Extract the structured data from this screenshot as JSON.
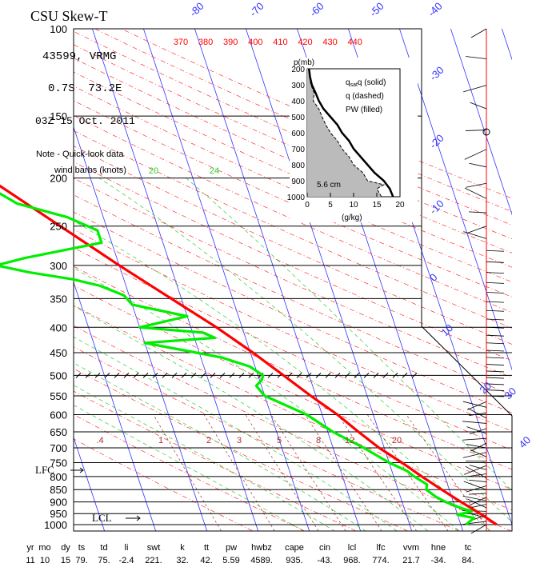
{
  "chart_data": {
    "type": "line",
    "title": "CSU Skew-T",
    "station": "43599, VRMG",
    "location": "0.7S  73.2E",
    "time": "03Z 15 Oct. 2011",
    "note_line1": "Note - Quick-look data",
    "note_line2": "wind barbs (knots)",
    "pressure_ticks": [
      100,
      150,
      200,
      250,
      300,
      350,
      400,
      450,
      500,
      550,
      600,
      650,
      700,
      750,
      800,
      850,
      900,
      950,
      1000
    ],
    "isotherm_labels": [
      -80,
      -70,
      -60,
      -50,
      -40,
      -30,
      -20,
      -10,
      0,
      10,
      20,
      30,
      40
    ],
    "theta_labels": [
      370,
      380,
      390,
      400,
      410,
      420,
      430,
      440
    ],
    "mixing_ratio_labels": [
      ".4",
      "1",
      "2",
      "3",
      "5",
      "8",
      "12",
      "20"
    ],
    "mixing_ratio_upper_labels": [
      "20",
      "24"
    ],
    "series": [
      {
        "name": "temperature",
        "color": "#ff0000",
        "points": [
          [
            1000,
            27
          ],
          [
            970,
            25.5
          ],
          [
            950,
            24.5
          ],
          [
            925,
            23
          ],
          [
            900,
            21.5
          ],
          [
            850,
            18.5
          ],
          [
            800,
            15.5
          ],
          [
            750,
            12.5
          ],
          [
            700,
            9
          ],
          [
            650,
            6
          ],
          [
            600,
            3
          ],
          [
            550,
            -1
          ],
          [
            500,
            -5
          ],
          [
            450,
            -9.5
          ],
          [
            400,
            -15
          ],
          [
            350,
            -22
          ],
          [
            300,
            -30
          ],
          [
            250,
            -39
          ],
          [
            200,
            -50
          ],
          [
            175,
            -57
          ],
          [
            150,
            -63.5
          ],
          [
            125,
            -72.5
          ],
          [
            100,
            -81
          ]
        ]
      },
      {
        "name": "dewpoint",
        "color": "#00ee00",
        "points": [
          [
            1000,
            21
          ],
          [
            985,
            22
          ],
          [
            970,
            23
          ],
          [
            955,
            20
          ],
          [
            940,
            23
          ],
          [
            925,
            21
          ],
          [
            900,
            18.5
          ],
          [
            880,
            17
          ],
          [
            850,
            15.5
          ],
          [
            830,
            16
          ],
          [
            800,
            14
          ],
          [
            780,
            13
          ],
          [
            750,
            10
          ],
          [
            700,
            6
          ],
          [
            650,
            1
          ],
          [
            600,
            -3
          ],
          [
            550,
            -10
          ],
          [
            525,
            -11
          ],
          [
            510,
            -9.5
          ],
          [
            500,
            -9
          ],
          [
            480,
            -11
          ],
          [
            460,
            -16
          ],
          [
            430,
            -30
          ],
          [
            420,
            -16
          ],
          [
            410,
            -18
          ],
          [
            400,
            -30
          ],
          [
            380,
            -20
          ],
          [
            360,
            -30
          ],
          [
            345,
            -31
          ],
          [
            330,
            -35
          ],
          [
            320,
            -40
          ],
          [
            310,
            -48
          ],
          [
            300,
            -54
          ],
          [
            290,
            -48
          ],
          [
            270,
            -32
          ],
          [
            255,
            -32
          ],
          [
            240,
            -37
          ],
          [
            225,
            -46
          ],
          [
            210,
            -50
          ],
          [
            200,
            -55
          ]
        ]
      }
    ],
    "inset": {
      "title_label": "p(mb)",
      "legend": [
        "q (solid)",
        "q (dashed)",
        "PW (filled)"
      ],
      "q_subscript": "sat",
      "xlabel": "(g/kg)",
      "pw_label": "5.6 cm",
      "y_ticks": [
        200,
        300,
        400,
        500,
        600,
        700,
        800,
        900,
        1000
      ],
      "x_ticks": [
        0,
        5,
        10,
        15,
        20
      ],
      "qsat": [
        [
          1000,
          18.5
        ],
        [
          950,
          17.8
        ],
        [
          900,
          16.5
        ],
        [
          850,
          14.5
        ],
        [
          800,
          13.0
        ],
        [
          750,
          11.5
        ],
        [
          700,
          10.0
        ],
        [
          650,
          9.0
        ],
        [
          600,
          7.5
        ],
        [
          550,
          6.5
        ],
        [
          500,
          5.0
        ],
        [
          450,
          3.5
        ],
        [
          400,
          2.5
        ],
        [
          350,
          1.8
        ],
        [
          300,
          1.0
        ],
        [
          250,
          0.6
        ],
        [
          200,
          0.4
        ]
      ],
      "q": [
        [
          1000,
          16.0
        ],
        [
          950,
          15.0
        ],
        [
          925,
          16.5
        ],
        [
          900,
          13.0
        ],
        [
          850,
          12.0
        ],
        [
          800,
          10.0
        ],
        [
          750,
          9.0
        ],
        [
          700,
          7.5
        ],
        [
          650,
          6.5
        ],
        [
          600,
          5.0
        ],
        [
          550,
          4.0
        ],
        [
          500,
          3.2
        ],
        [
          450,
          2.5
        ],
        [
          400,
          1.3
        ],
        [
          350,
          1.5
        ],
        [
          300,
          0.8
        ],
        [
          250,
          0.5
        ],
        [
          200,
          0.3
        ]
      ]
    },
    "stats": {
      "headers": [
        "yr",
        "mo",
        "dy",
        "ts",
        "td",
        "li",
        "swt",
        "k",
        "tt",
        "pw",
        "hwbz",
        "cape",
        "cin",
        "lcl",
        "lfc",
        "vvm",
        "hne",
        "tc"
      ],
      "values": [
        "11",
        "10",
        "15",
        "79.",
        "75.",
        "-2.4",
        "221.",
        "32.",
        "42.",
        "5.59",
        "4589.",
        "935.",
        "-43.",
        "968.",
        "774.",
        "21.7",
        "-34.",
        "84."
      ]
    },
    "lfc_label": "LFC",
    "lcl_label": "LCL"
  }
}
